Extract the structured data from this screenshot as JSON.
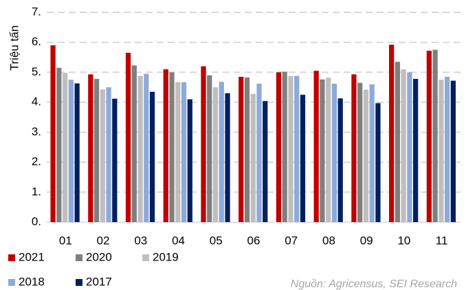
{
  "chart_data": {
    "type": "bar",
    "y_label": "Triệu tấn",
    "annotation": "Nguồn: Agricensus, SEI Research",
    "categories": [
      "01",
      "02",
      "03",
      "04",
      "05",
      "06",
      "07",
      "08",
      "09",
      "10",
      "11"
    ],
    "series": [
      {
        "name": "2021",
        "color": "#c00000",
        "values": [
          5.9,
          4.93,
          5.65,
          5.1,
          5.2,
          4.85,
          5.0,
          5.05,
          4.93,
          5.92,
          5.72
        ]
      },
      {
        "name": "2020",
        "color": "#7f7f7f",
        "values": [
          5.15,
          4.78,
          5.23,
          5.0,
          4.9,
          4.83,
          5.02,
          4.76,
          4.65,
          5.35,
          5.75
        ]
      },
      {
        "name": "2019",
        "color": "#bfbfbf",
        "values": [
          4.98,
          4.43,
          4.88,
          4.67,
          4.5,
          4.28,
          4.88,
          4.82,
          4.42,
          5.1,
          4.75
        ]
      },
      {
        "name": "2018",
        "color": "#8eaadb",
        "values": [
          4.75,
          4.5,
          4.95,
          4.67,
          4.68,
          4.62,
          4.88,
          4.62,
          4.6,
          5.0,
          4.85
        ]
      },
      {
        "name": "2017",
        "color": "#002060",
        "values": [
          4.63,
          4.12,
          4.35,
          4.1,
          4.3,
          4.04,
          4.25,
          4.13,
          3.97,
          4.78,
          4.72
        ]
      }
    ],
    "ylim": [
      0,
      7
    ],
    "yticks": [
      {
        "value": 0,
        "label": "0."
      },
      {
        "value": 1,
        "label": "1."
      },
      {
        "value": 2,
        "label": "2."
      },
      {
        "value": 3,
        "label": "3."
      },
      {
        "value": 4,
        "label": "4."
      },
      {
        "value": 5,
        "label": "5."
      },
      {
        "value": 6,
        "label": "6."
      },
      {
        "value": 7,
        "label": "7."
      }
    ],
    "grid": true,
    "legend": "bottom-left"
  }
}
